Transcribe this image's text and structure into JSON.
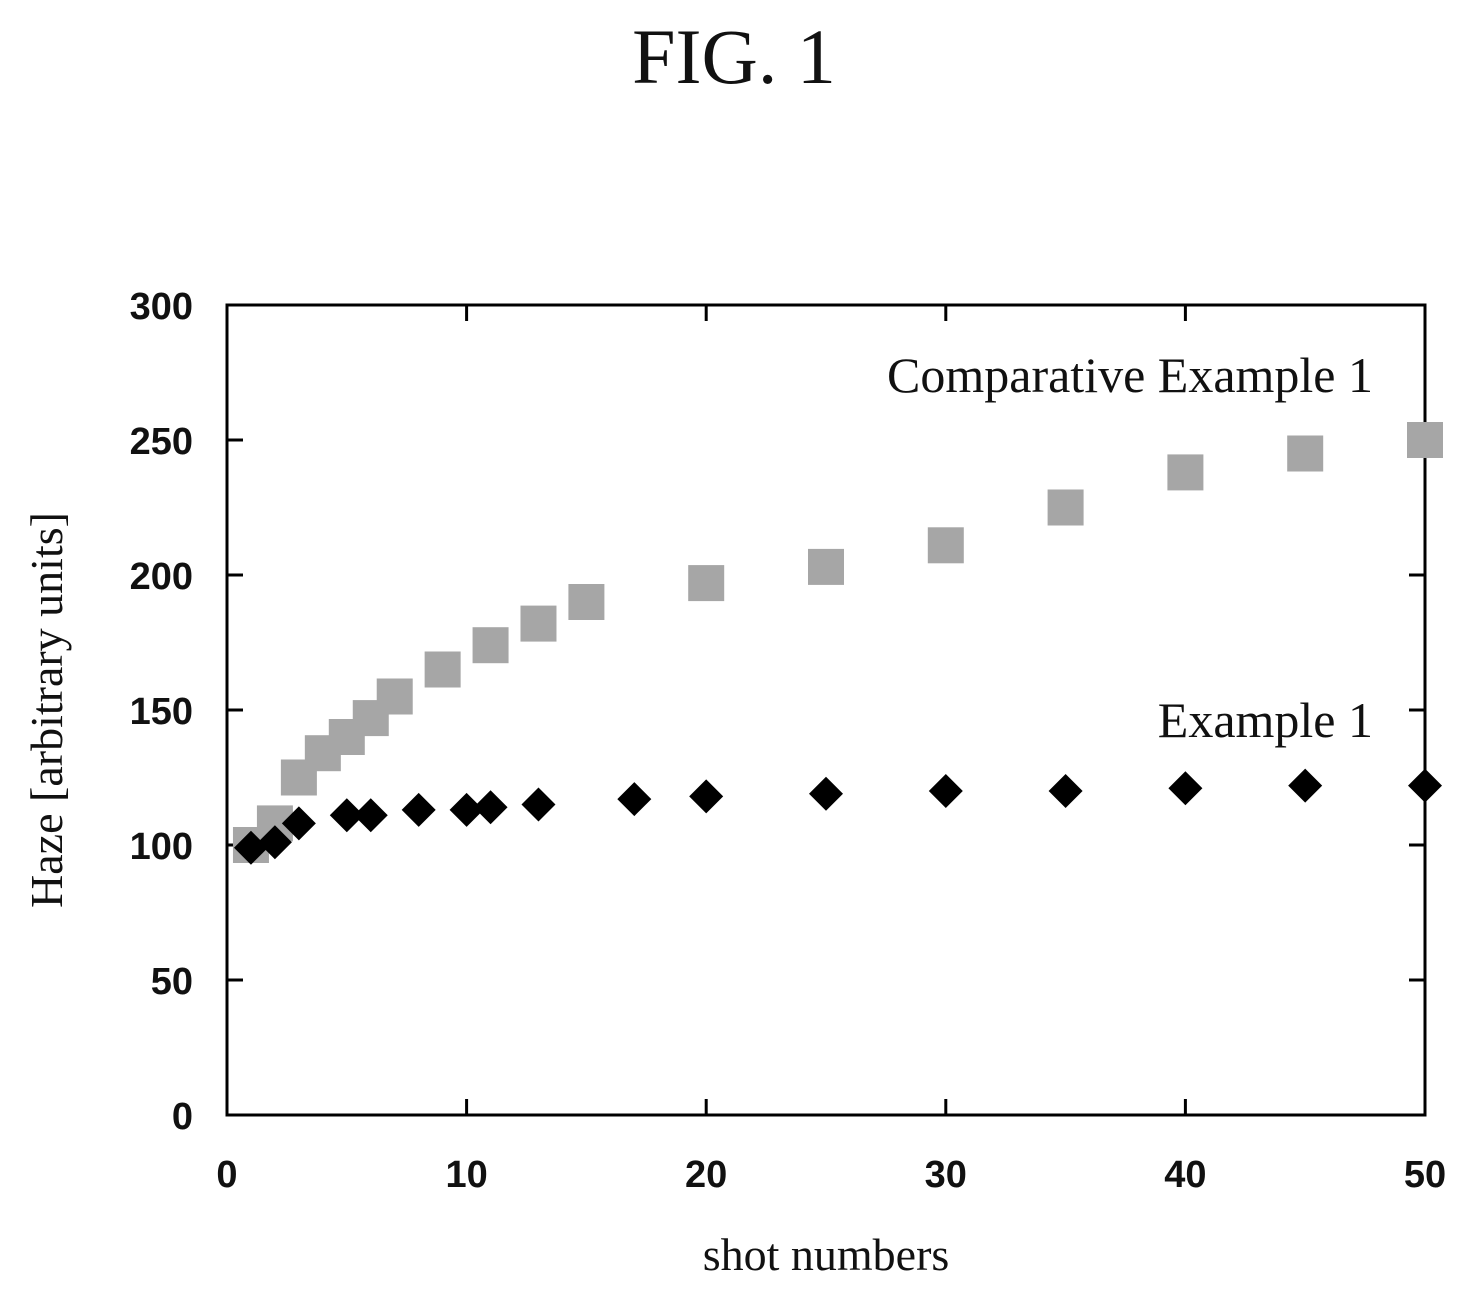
{
  "figure_title": "FIG. 1",
  "chart_data": {
    "type": "scatter",
    "xlabel": "shot numbers",
    "ylabel": "Haze [arbitrary units]",
    "xlim": [
      0,
      50
    ],
    "ylim": [
      0,
      300
    ],
    "xticks": [
      0,
      10,
      20,
      30,
      40,
      50
    ],
    "yticks": [
      0,
      50,
      100,
      150,
      200,
      250,
      300
    ],
    "grid": false,
    "legend": "none (series labels placed beside data)",
    "series": [
      {
        "name": "Comparative Example 1",
        "marker": "square",
        "color": "#a6a6a6",
        "x": [
          1,
          2,
          3,
          4,
          5,
          6,
          7,
          9,
          11,
          13,
          15,
          20,
          25,
          30,
          35,
          40,
          45,
          50
        ],
        "y": [
          100,
          108,
          125,
          134,
          140,
          147,
          155,
          165,
          174,
          182,
          190,
          197,
          203,
          211,
          225,
          238,
          245,
          250
        ]
      },
      {
        "name": "Example 1",
        "marker": "diamond",
        "color": "#000000",
        "x": [
          1,
          2,
          3,
          5,
          6,
          8,
          10,
          11,
          13,
          17,
          20,
          25,
          30,
          35,
          40,
          45,
          50
        ],
        "y": [
          99,
          101,
          108,
          111,
          111,
          113,
          113,
          114,
          115,
          117,
          118,
          119,
          120,
          120,
          121,
          122,
          122
        ]
      }
    ]
  }
}
